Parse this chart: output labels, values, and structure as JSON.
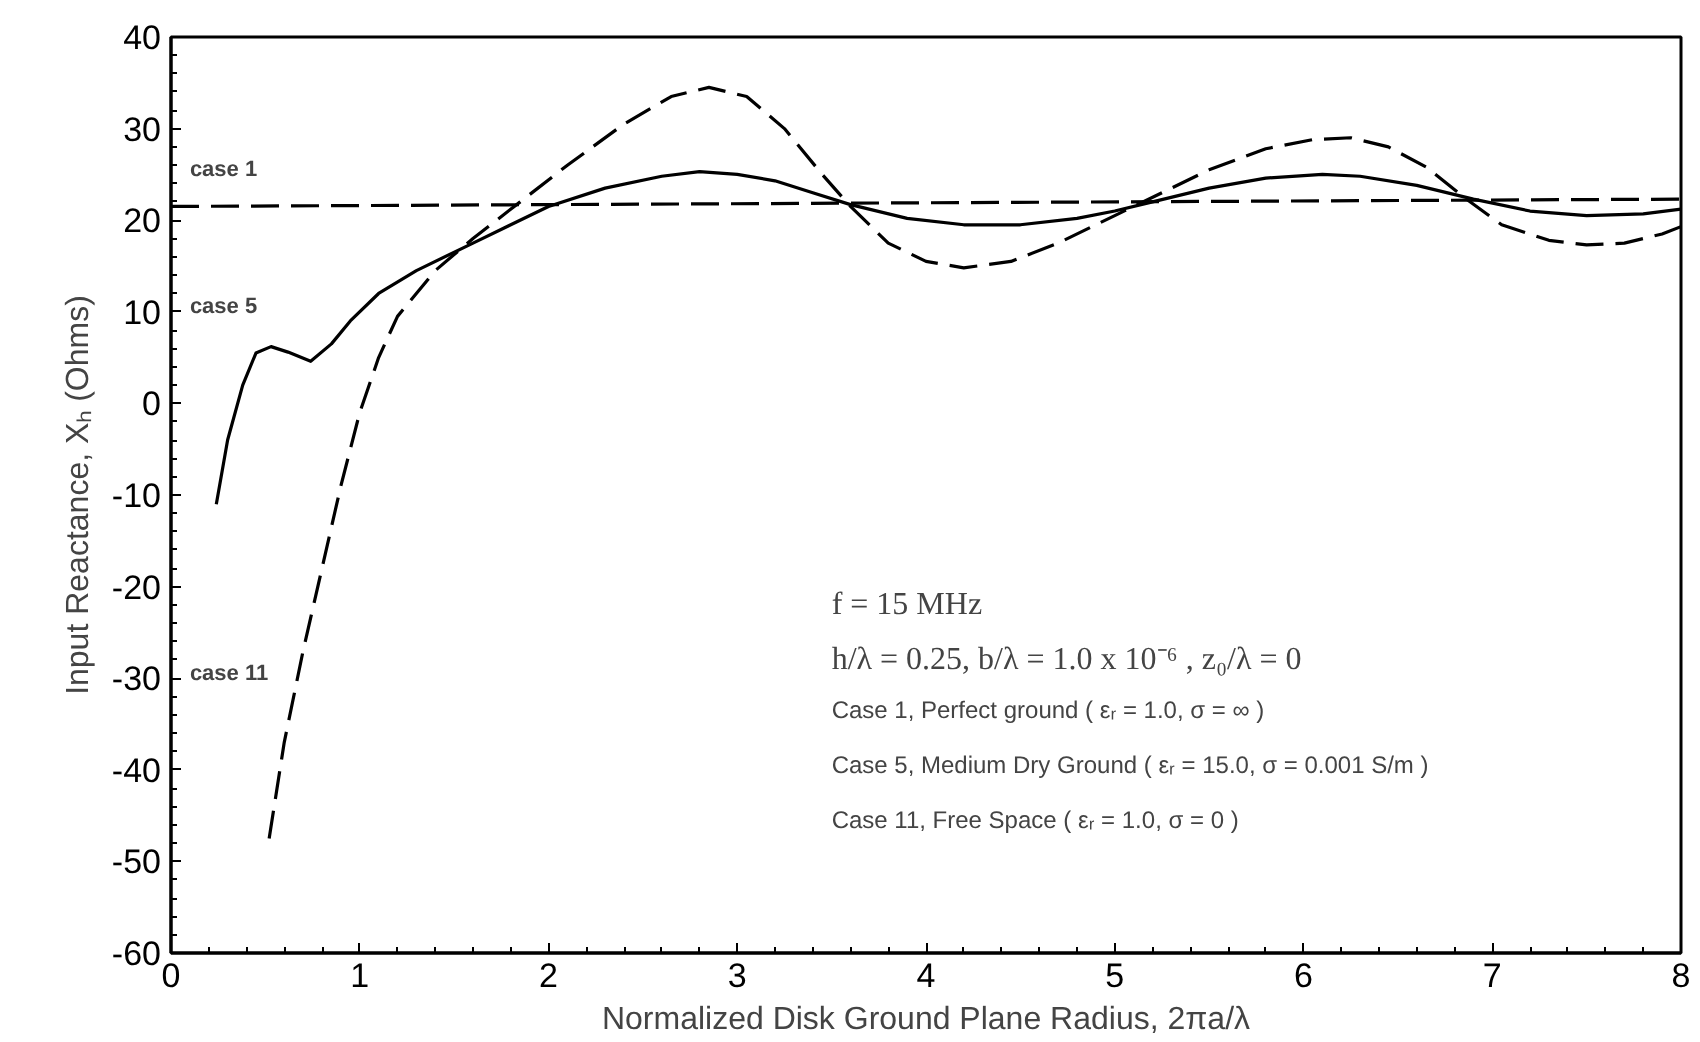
{
  "chart_data": {
    "type": "line",
    "xlabel": "Normalized Disk Ground Plane Radius, 2πa/λ",
    "ylabel": "Input Reactance, Xₕ (Ohms)",
    "xlim": [
      0,
      8
    ],
    "ylim": [
      -60,
      40
    ],
    "xticks": [
      0,
      1,
      2,
      3,
      4,
      5,
      6,
      7,
      8
    ],
    "yticks": [
      -60,
      -50,
      -40,
      -30,
      -20,
      -10,
      0,
      10,
      20,
      30,
      40
    ],
    "grid": false,
    "series": [
      {
        "color": "#000000",
        "line_style": "dashed",
        "x": [
          0,
          8
        ],
        "values": [
          21.5,
          22.3
        ]
      },
      {
        "color": "#000000",
        "line_style": "solid",
        "x": [
          0.24,
          0.3,
          0.38,
          0.45,
          0.53,
          0.62,
          0.74,
          0.85,
          0.95,
          1.1,
          1.3,
          1.6,
          1.8,
          2.0,
          2.3,
          2.6,
          2.8,
          3.0,
          3.2,
          3.4,
          3.6,
          3.9,
          4.2,
          4.5,
          4.8,
          5.0,
          5.2,
          5.5,
          5.8,
          6.1,
          6.3,
          6.6,
          6.9,
          7.2,
          7.5,
          7.8,
          8.0
        ],
        "values": [
          -11,
          -4,
          2,
          5.5,
          6.2,
          5.6,
          4.6,
          6.5,
          9,
          12,
          14.5,
          17.5,
          19.5,
          21.5,
          23.5,
          24.8,
          25.3,
          25,
          24.3,
          23,
          21.7,
          20.2,
          19.5,
          19.5,
          20.2,
          21,
          22,
          23.5,
          24.6,
          25,
          24.8,
          23.8,
          22.3,
          21,
          20.5,
          20.7,
          21.2
        ]
      },
      {
        "color": "#000000",
        "line_style": "dashed",
        "x": [
          0.52,
          0.6,
          0.7,
          0.8,
          0.9,
          1.0,
          1.1,
          1.2,
          1.4,
          1.6,
          1.85,
          2.1,
          2.4,
          2.65,
          2.85,
          3.05,
          3.25,
          3.45,
          3.6,
          3.8,
          4.0,
          4.2,
          4.45,
          4.7,
          5.0,
          5.25,
          5.5,
          5.8,
          6.05,
          6.25,
          6.45,
          6.65,
          6.85,
          7.05,
          7.3,
          7.5,
          7.7,
          7.9,
          8.0
        ],
        "values": [
          -47.5,
          -37,
          -27,
          -18,
          -9,
          -1,
          5,
          9.5,
          14.5,
          18,
          22,
          26,
          30.5,
          33.5,
          34.5,
          33.5,
          30,
          25,
          21.5,
          17.5,
          15.5,
          14.8,
          15.5,
          17.5,
          20.5,
          23,
          25.5,
          27.8,
          28.8,
          29,
          28,
          25.8,
          22.5,
          19.5,
          17.8,
          17.3,
          17.5,
          18.5,
          19.3
        ]
      }
    ],
    "annotations": [
      "case 1",
      "case 5",
      "case 11",
      "f = 15 MHz",
      "h/λ = 0.25,  b/λ = 1.0 x 10⁻⁶ ,   z₀/λ = 0",
      "Case 1, Perfect ground  ( εᵣ = 1.0,  σ =  ∞  )",
      "Case 5, Medium Dry Ground ( εᵣ = 15.0,  σ = 0.001 S/m )",
      "Case 11, Free Space  ( εᵣ = 1.0,  σ = 0 )"
    ]
  }
}
